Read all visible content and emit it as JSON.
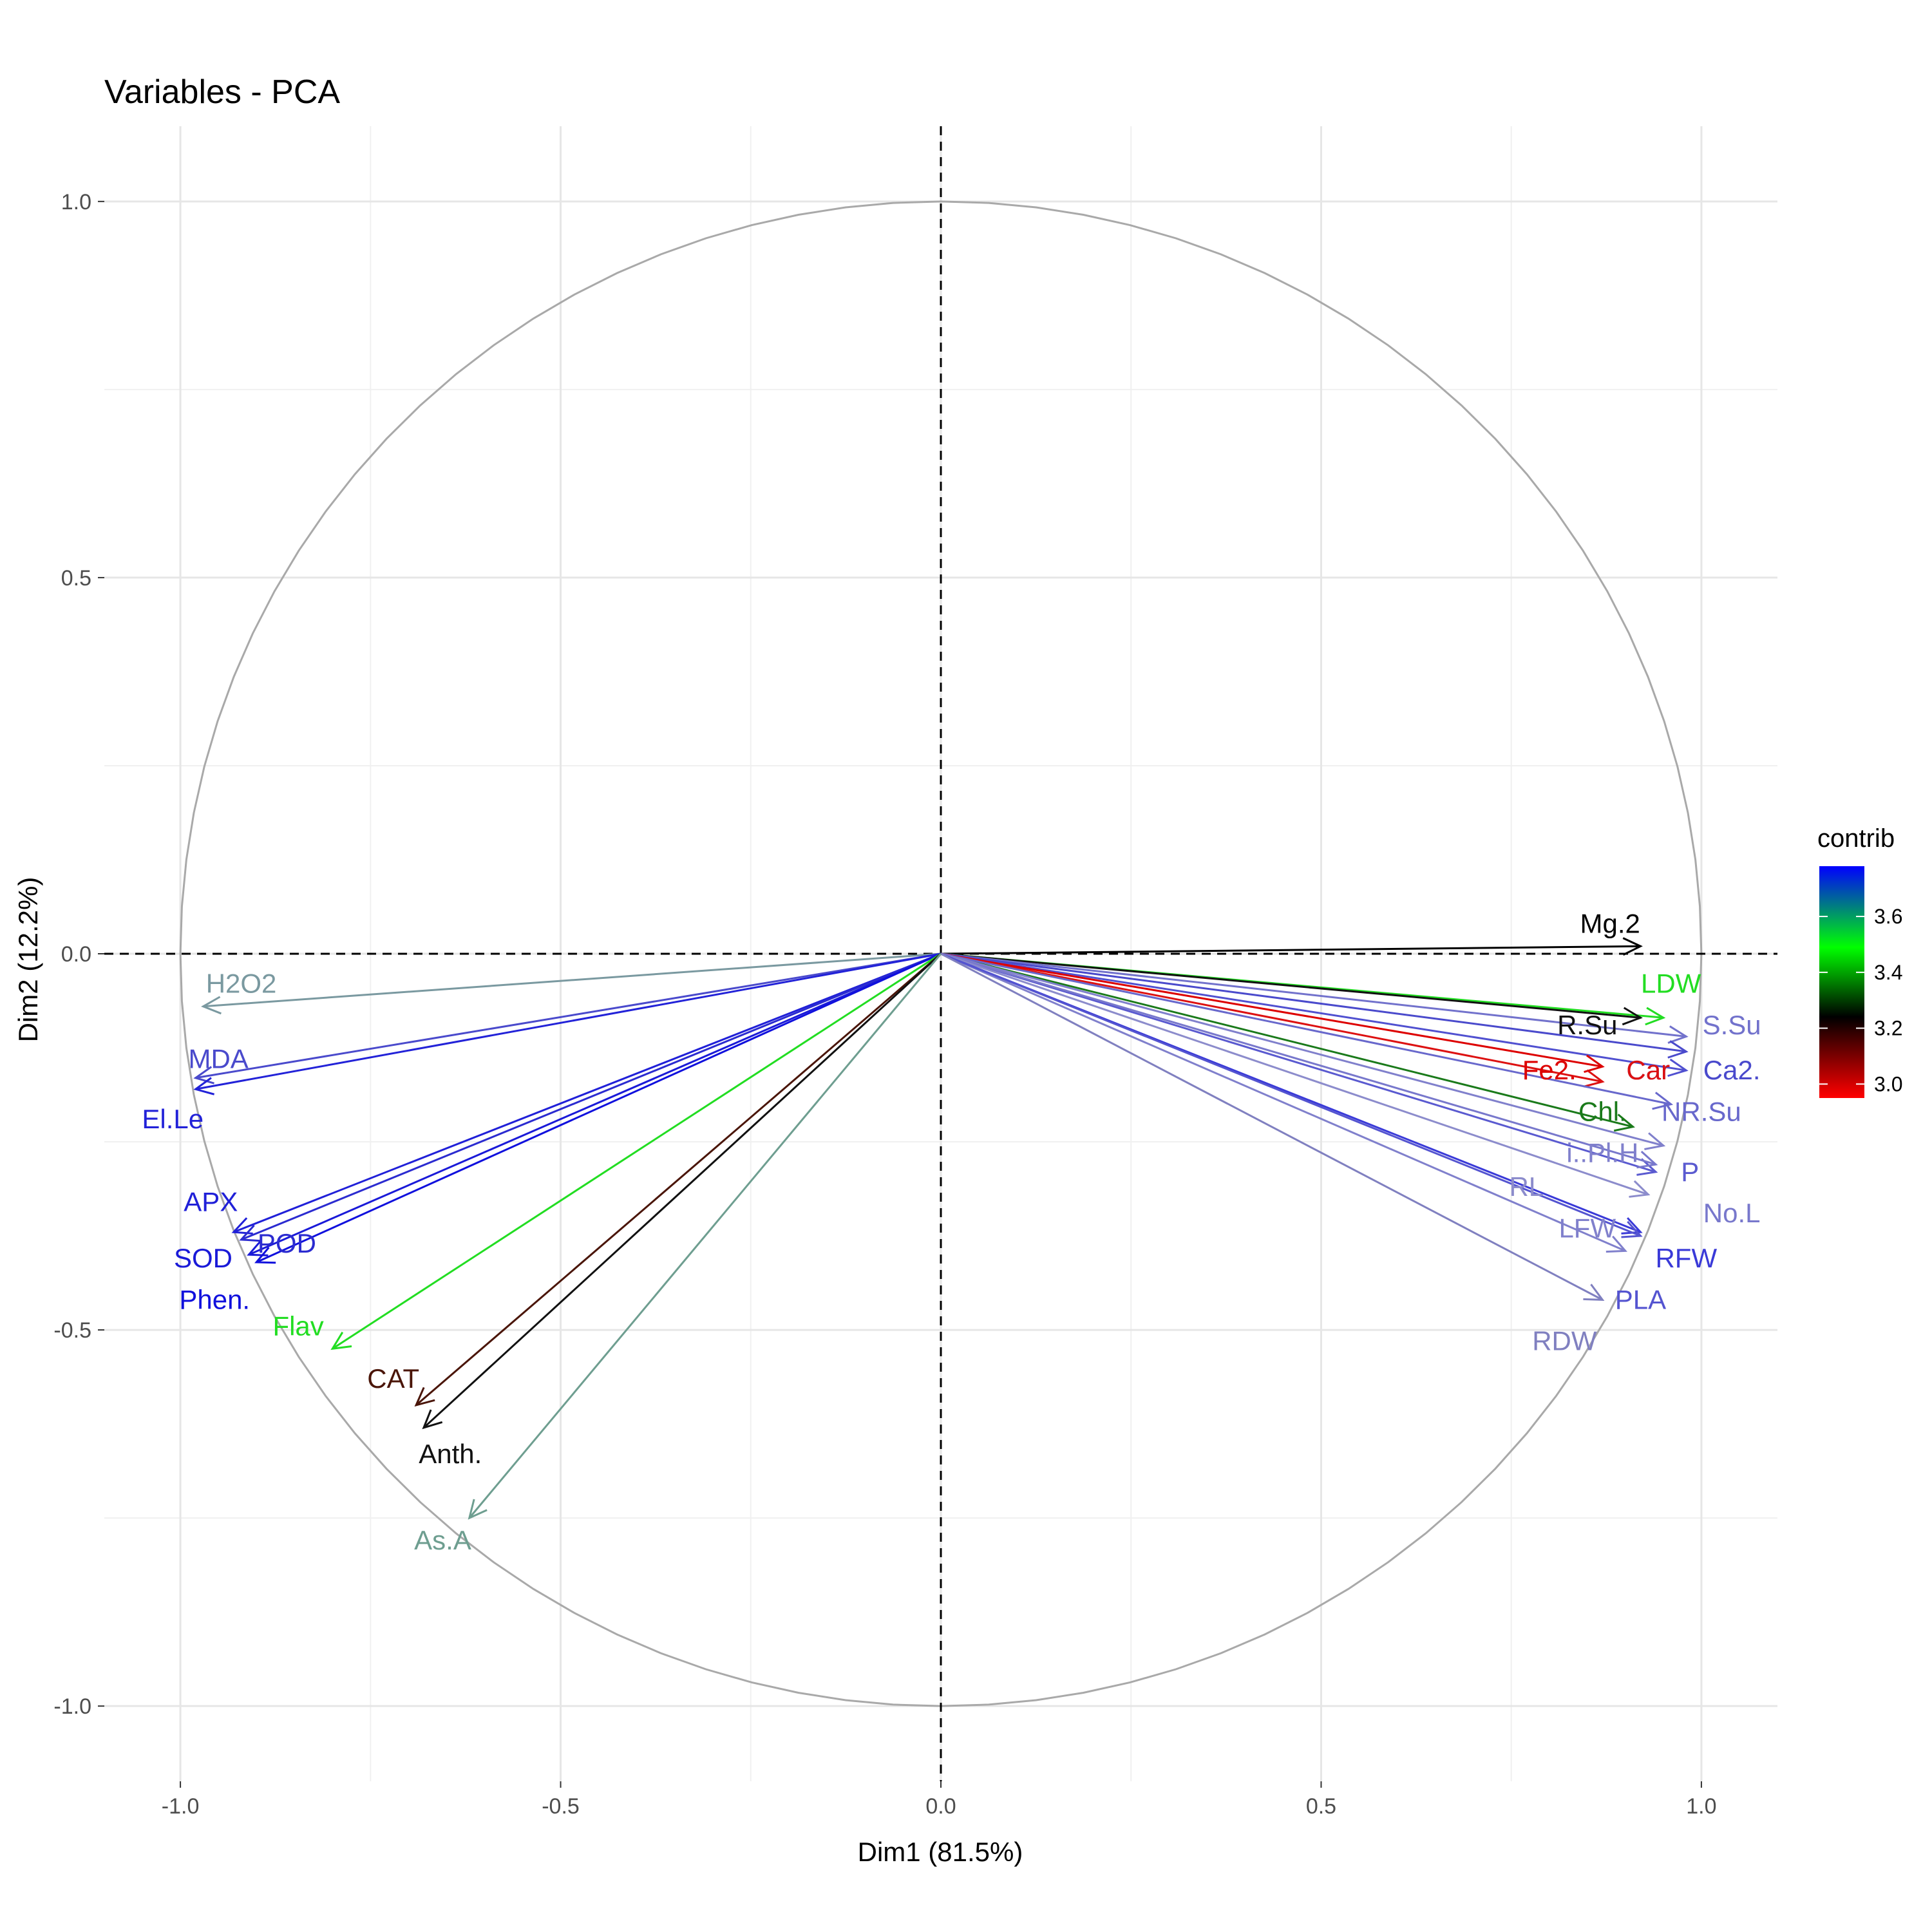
{
  "chart_data": {
    "type": "scatter",
    "subtype": "pca-variable-correlation-circle",
    "title": "Variables - PCA",
    "xlabel": "Dim1 (81.5%)",
    "ylabel": "Dim2 (12.2%)",
    "xlim": [
      -1.1,
      1.1
    ],
    "ylim": [
      -1.1,
      1.1
    ],
    "x_ticks": [
      -1.0,
      -0.5,
      0.0,
      0.5,
      1.0
    ],
    "x_tick_labels": [
      "-1.0",
      "-0.5",
      "0.0",
      "0.5",
      "1.0"
    ],
    "y_ticks": [
      -1.0,
      -0.5,
      0.0,
      0.5,
      1.0
    ],
    "y_tick_labels": [
      "-1.0",
      "-0.5",
      "0.0",
      "0.5",
      "1.0"
    ],
    "grid": true,
    "unit_circle": true,
    "reference_lines": "dashed at x=0 and y=0",
    "legend": {
      "title": "contrib",
      "position": "right",
      "ticks": [
        3.0,
        3.2,
        3.4,
        3.6
      ],
      "tick_labels": [
        "3.0",
        "3.2",
        "3.4",
        "3.6"
      ],
      "gradient": [
        "#ff0000",
        "#000000",
        "#00ff00",
        "#0000ff"
      ]
    },
    "variables": [
      {
        "name": "Mg.2",
        "x": 0.92,
        "y": 0.01,
        "color": "#000000",
        "label_x": 0.88,
        "label_y": 0.04
      },
      {
        "name": "LDW",
        "x": 0.95,
        "y": -0.085,
        "color": "#22dd22",
        "label_x": 0.96,
        "label_y": -0.04
      },
      {
        "name": "R.Su",
        "x": 0.92,
        "y": -0.085,
        "color": "#111111",
        "label_x": 0.85,
        "label_y": -0.095
      },
      {
        "name": "S.Su",
        "x": 0.98,
        "y": -0.11,
        "color": "#7272cc",
        "label_x": 1.04,
        "label_y": -0.095
      },
      {
        "name": "Ca2.",
        "x": 0.98,
        "y": -0.13,
        "color": "#4a4acc",
        "label_x": 1.04,
        "label_y": -0.155
      },
      {
        "name": "Car",
        "x": 0.98,
        "y": -0.155,
        "color": "#5050d0",
        "label_x": 0.93,
        "label_y": -0.155
      },
      {
        "name": "Fe2.",
        "x": 0.87,
        "y": -0.15,
        "color": "#dd0000",
        "label_x": 0.8,
        "label_y": -0.155
      },
      {
        "name": "Car",
        "x": 0.87,
        "y": -0.17,
        "color": "#dd1111",
        "label_x": 0.93,
        "label_y": -0.155
      },
      {
        "name": "Chl.",
        "x": 0.91,
        "y": -0.23,
        "color": "#1a7a1a",
        "label_x": 0.87,
        "label_y": -0.21
      },
      {
        "name": "NR.Su",
        "x": 0.96,
        "y": -0.2,
        "color": "#6868cc",
        "label_x": 1.0,
        "label_y": -0.21
      },
      {
        "name": "i..Pl.H",
        "x": 0.95,
        "y": -0.255,
        "color": "#8080cc",
        "label_x": 0.87,
        "label_y": -0.265
      },
      {
        "name": "P",
        "x": 0.94,
        "y": -0.29,
        "color": "#5a5ad0",
        "label_x": 0.985,
        "label_y": -0.29
      },
      {
        "name": "No.L",
        "x": 0.94,
        "y": -0.28,
        "color": "#7878cc",
        "label_x": 1.04,
        "label_y": -0.345
      },
      {
        "name": "RL",
        "x": 0.93,
        "y": -0.32,
        "color": "#8c8ccc",
        "label_x": 0.77,
        "label_y": -0.31
      },
      {
        "name": "LFW",
        "x": 0.9,
        "y": -0.395,
        "color": "#8080cc",
        "label_x": 0.85,
        "label_y": -0.365
      },
      {
        "name": "RFW",
        "x": 0.92,
        "y": -0.37,
        "color": "#3a3ad8",
        "label_x": 0.98,
        "label_y": -0.405
      },
      {
        "name": "PLA",
        "x": 0.92,
        "y": -0.375,
        "color": "#5454d0",
        "label_x": 0.92,
        "label_y": -0.46
      },
      {
        "name": "RDW",
        "x": 0.87,
        "y": -0.46,
        "color": "#8080c0",
        "label_x": 0.82,
        "label_y": -0.515
      },
      {
        "name": "H2O2",
        "x": -0.97,
        "y": -0.07,
        "color": "#7a99a0",
        "label_x": -0.92,
        "label_y": -0.04
      },
      {
        "name": "MDA",
        "x": -0.98,
        "y": -0.165,
        "color": "#4a4acc",
        "label_x": -0.95,
        "label_y": -0.14
      },
      {
        "name": "El.Le",
        "x": -0.98,
        "y": -0.18,
        "color": "#2222d8",
        "label_x": -1.01,
        "label_y": -0.22
      },
      {
        "name": "APX",
        "x": -0.93,
        "y": -0.37,
        "color": "#2020d8",
        "label_x": -0.96,
        "label_y": -0.33
      },
      {
        "name": "POD",
        "x": -0.92,
        "y": -0.38,
        "color": "#2b2bd0",
        "label_x": -0.86,
        "label_y": -0.385
      },
      {
        "name": "SOD",
        "x": -0.91,
        "y": -0.4,
        "color": "#1a1ad8",
        "label_x": -0.97,
        "label_y": -0.405
      },
      {
        "name": "Phen.",
        "x": -0.9,
        "y": -0.41,
        "color": "#1010dd",
        "label_x": -0.955,
        "label_y": -0.46
      },
      {
        "name": "Flav",
        "x": -0.8,
        "y": -0.525,
        "color": "#22dd22",
        "label_x": -0.845,
        "label_y": -0.495
      },
      {
        "name": "CAT",
        "x": -0.69,
        "y": -0.6,
        "color": "#4a1508",
        "label_x": -0.72,
        "label_y": -0.565
      },
      {
        "name": "Anth.",
        "x": -0.68,
        "y": -0.63,
        "color": "#111111",
        "label_x": -0.645,
        "label_y": -0.665
      },
      {
        "name": "As.A",
        "x": -0.62,
        "y": -0.75,
        "color": "#6e9e90",
        "label_x": -0.655,
        "label_y": -0.78
      }
    ]
  }
}
